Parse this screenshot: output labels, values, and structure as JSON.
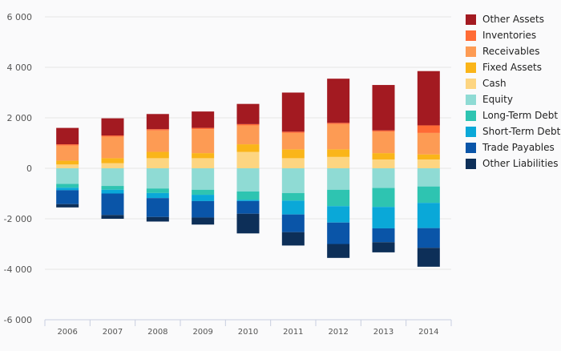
{
  "chart_data": {
    "type": "bar",
    "stacked": true,
    "categories": [
      "2006",
      "2007",
      "2008",
      "2009",
      "2010",
      "2011",
      "2012",
      "2013",
      "2014"
    ],
    "ylim": [
      -6000,
      6000
    ],
    "yticks": [
      -6000,
      -4000,
      -2000,
      0,
      2000,
      4000,
      6000
    ],
    "ytick_labels": [
      "-6 000",
      "-4 000",
      "-2 000",
      "0",
      "2 000",
      "4 000",
      "6 000"
    ],
    "grid": true,
    "legend_position": "right",
    "series": [
      {
        "name": "Other Assets",
        "color": "#a31a21",
        "values": [
          650,
          680,
          600,
          650,
          800,
          1550,
          1750,
          1800,
          2150
        ]
      },
      {
        "name": "Inventories",
        "color": "#ff6b35",
        "values": [
          50,
          50,
          50,
          50,
          50,
          50,
          50,
          50,
          300
        ]
      },
      {
        "name": "Receivables",
        "color": "#fd9b54",
        "values": [
          600,
          850,
          850,
          950,
          750,
          650,
          1000,
          850,
          850
        ]
      },
      {
        "name": "Fixed Assets",
        "color": "#fab519",
        "values": [
          150,
          200,
          250,
          200,
          300,
          350,
          300,
          250,
          200
        ]
      },
      {
        "name": "Cash",
        "color": "#fdd581",
        "values": [
          150,
          200,
          400,
          400,
          650,
          400,
          450,
          350,
          350
        ]
      },
      {
        "name": "Equity",
        "color": "#8fdbd4",
        "values": [
          -620,
          -700,
          -800,
          -850,
          -920,
          -980,
          -850,
          -780,
          -720
        ]
      },
      {
        "name": "Long-Term Debt",
        "color": "#2ec4b1",
        "values": [
          -150,
          -150,
          -180,
          -200,
          -330,
          -300,
          -650,
          -750,
          -650
        ]
      },
      {
        "name": "Short-Term Debt",
        "color": "#0aa8d8",
        "values": [
          -100,
          -150,
          -200,
          -250,
          -50,
          -550,
          -650,
          -850,
          -1000
        ]
      },
      {
        "name": "Trade Payables",
        "color": "#0a55a8",
        "values": [
          -550,
          -850,
          -750,
          -650,
          -500,
          -700,
          -850,
          -550,
          -780
        ]
      },
      {
        "name": "Other Liabilities",
        "color": "#0d2f58",
        "values": [
          -130,
          -150,
          -180,
          -280,
          -780,
          -530,
          -550,
          -400,
          -750
        ]
      }
    ],
    "legend_order": [
      "Other Assets",
      "Inventories",
      "Receivables",
      "Fixed Assets",
      "Cash",
      "Equity",
      "Long-Term Debt",
      "Short-Term Debt",
      "Trade Payables",
      "Other Liabilities"
    ]
  }
}
